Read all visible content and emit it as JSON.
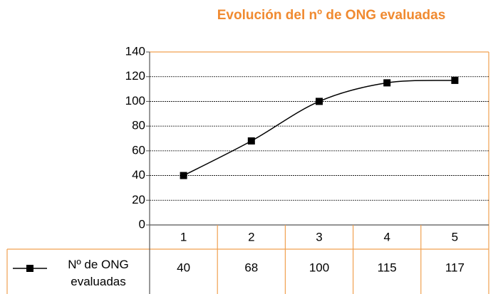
{
  "chart_data": {
    "type": "line",
    "title": "Evolución del nº de ONG evaluadas",
    "categories": [
      "1",
      "2",
      "3",
      "4",
      "5"
    ],
    "series": [
      {
        "name": "Nº de ONG evaluadas",
        "color": "#000000",
        "values": [
          40,
          68,
          100,
          115,
          117
        ]
      }
    ],
    "ylim": [
      0,
      140
    ],
    "yticks": [
      0,
      20,
      40,
      60,
      80,
      100,
      120,
      140
    ],
    "grid": true,
    "smooth": true
  }
}
